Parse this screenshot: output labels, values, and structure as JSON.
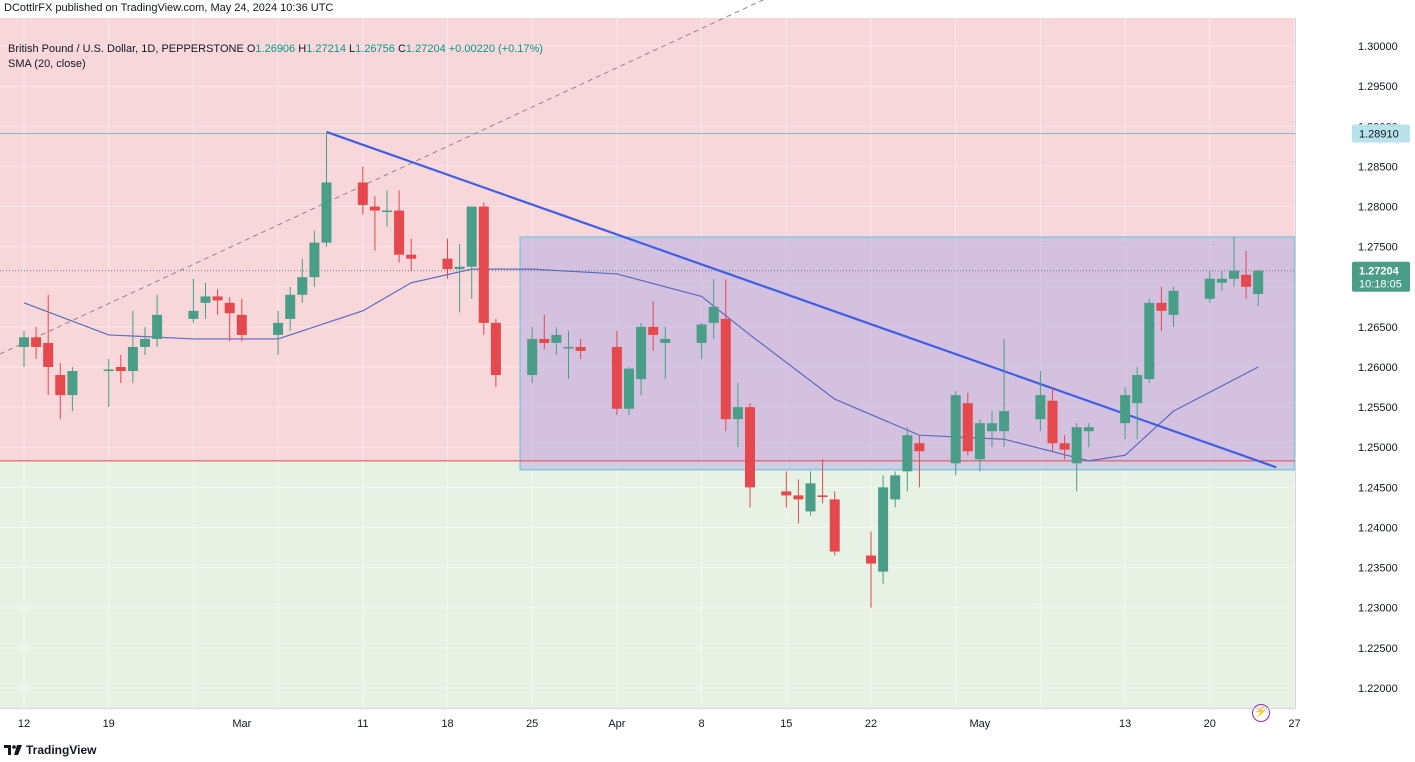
{
  "header": {
    "published": "DCottlrFX published on TradingView.com, May 24, 2024 10:36 UTC"
  },
  "legend": {
    "symbol": "British Pound / U.S. Dollar, 1D, PEPPERSTONE",
    "open_label": "O",
    "open": "1.26906",
    "high_label": "H",
    "high": "1.27214",
    "low_label": "L",
    "low": "1.26756",
    "close_label": "C",
    "close": "1.27204",
    "change": "+0.00220 (+0.17%)",
    "indicator": "SMA (20, close)"
  },
  "price_badges": {
    "resistance": "1.28910",
    "last": "1.27204",
    "countdown": "10:18:05"
  },
  "footer": {
    "brand": "TradingView"
  },
  "colors": {
    "up": "#4a9e88",
    "down": "#e5484d",
    "upper_zone": "#f7d7d9",
    "lower_zone": "#e8f2e4",
    "box": "#b6aee3",
    "trendline": "#3f5fe6",
    "sma": "#5c6bc0",
    "diagonal": "#a07f8a"
  },
  "chart_data": {
    "type": "candlestick",
    "title": "British Pound / U.S. Dollar, 1D, PEPPERSTONE",
    "y_ticks": [
      "1.30000",
      "1.29500",
      "1.29000",
      "1.28500",
      "1.28000",
      "1.27500",
      "1.27000",
      "1.26500",
      "1.26000",
      "1.25500",
      "1.25000",
      "1.24500",
      "1.24000",
      "1.23500",
      "1.23000",
      "1.22500",
      "1.22000"
    ],
    "ylim": [
      1.2175,
      1.3035
    ],
    "x_ticks": [
      "12",
      "19",
      "Mar",
      "11",
      "18",
      "25",
      "Apr",
      "8",
      "15",
      "22",
      "May",
      "13",
      "20",
      "27"
    ],
    "horizontal_levels": [
      1.2891,
      1.2483
    ],
    "zone": {
      "top": 1.2762,
      "bottom": 1.2472,
      "start": "Mar 25",
      "end": "May 27"
    },
    "trendline": {
      "from": [
        "Mar 8",
        1.2893
      ],
      "to": [
        "May 24",
        1.2475
      ]
    },
    "candles": [
      {
        "d": "Feb 12",
        "o": 1.2625,
        "h": 1.2645,
        "l": 1.26,
        "c": 1.2637
      },
      {
        "d": "Feb 13",
        "o": 1.2637,
        "h": 1.265,
        "l": 1.261,
        "c": 1.2625
      },
      {
        "d": "Feb 14",
        "o": 1.263,
        "h": 1.269,
        "l": 1.2565,
        "c": 1.26
      },
      {
        "d": "Feb 15",
        "o": 1.259,
        "h": 1.2605,
        "l": 1.2535,
        "c": 1.2565
      },
      {
        "d": "Feb 16",
        "o": 1.2565,
        "h": 1.26,
        "l": 1.2545,
        "c": 1.2595
      },
      {
        "d": "Feb 19",
        "o": 1.2595,
        "h": 1.261,
        "l": 1.255,
        "c": 1.2597
      },
      {
        "d": "Feb 20",
        "o": 1.26,
        "h": 1.2615,
        "l": 1.258,
        "c": 1.2595
      },
      {
        "d": "Feb 21",
        "o": 1.2595,
        "h": 1.267,
        "l": 1.258,
        "c": 1.2625
      },
      {
        "d": "Feb 22",
        "o": 1.2625,
        "h": 1.265,
        "l": 1.2615,
        "c": 1.2635
      },
      {
        "d": "Feb 23",
        "o": 1.2635,
        "h": 1.269,
        "l": 1.2625,
        "c": 1.2665
      },
      {
        "d": "Feb 26",
        "o": 1.266,
        "h": 1.271,
        "l": 1.2655,
        "c": 1.267
      },
      {
        "d": "Feb 27",
        "o": 1.268,
        "h": 1.2705,
        "l": 1.266,
        "c": 1.2688
      },
      {
        "d": "Feb 28",
        "o": 1.2688,
        "h": 1.2697,
        "l": 1.2665,
        "c": 1.2683
      },
      {
        "d": "Feb 29",
        "o": 1.268,
        "h": 1.2687,
        "l": 1.2632,
        "c": 1.2667
      },
      {
        "d": "Mar 1",
        "o": 1.2665,
        "h": 1.2685,
        "l": 1.2632,
        "c": 1.264
      },
      {
        "d": "Mar 4",
        "o": 1.264,
        "h": 1.267,
        "l": 1.2615,
        "c": 1.2655
      },
      {
        "d": "Mar 5",
        "o": 1.266,
        "h": 1.27,
        "l": 1.2645,
        "c": 1.269
      },
      {
        "d": "Mar 6",
        "o": 1.269,
        "h": 1.2735,
        "l": 1.268,
        "c": 1.2712
      },
      {
        "d": "Mar 7",
        "o": 1.2712,
        "h": 1.277,
        "l": 1.27,
        "c": 1.2755
      },
      {
        "d": "Mar 8",
        "o": 1.2755,
        "h": 1.2893,
        "l": 1.275,
        "c": 1.283
      },
      {
        "d": "Mar 11",
        "o": 1.283,
        "h": 1.285,
        "l": 1.279,
        "c": 1.2802
      },
      {
        "d": "Mar 12",
        "o": 1.28,
        "h": 1.2813,
        "l": 1.2745,
        "c": 1.2795
      },
      {
        "d": "Mar 13",
        "o": 1.2795,
        "h": 1.282,
        "l": 1.2775,
        "c": 1.2795
      },
      {
        "d": "Mar 14",
        "o": 1.2795,
        "h": 1.282,
        "l": 1.273,
        "c": 1.274
      },
      {
        "d": "Mar 15",
        "o": 1.274,
        "h": 1.276,
        "l": 1.272,
        "c": 1.2735
      },
      {
        "d": "Mar 18",
        "o": 1.2735,
        "h": 1.276,
        "l": 1.271,
        "c": 1.2722
      },
      {
        "d": "Mar 19",
        "o": 1.2722,
        "h": 1.2753,
        "l": 1.2668,
        "c": 1.2725
      },
      {
        "d": "Mar 20",
        "o": 1.2725,
        "h": 1.28,
        "l": 1.2685,
        "c": 1.28
      },
      {
        "d": "Mar 21",
        "o": 1.28,
        "h": 1.2805,
        "l": 1.264,
        "c": 1.2655
      },
      {
        "d": "Mar 22",
        "o": 1.2655,
        "h": 1.266,
        "l": 1.2575,
        "c": 1.259
      },
      {
        "d": "Mar 25",
        "o": 1.259,
        "h": 1.265,
        "l": 1.258,
        "c": 1.2635
      },
      {
        "d": "Mar 26",
        "o": 1.2635,
        "h": 1.2665,
        "l": 1.2622,
        "c": 1.263
      },
      {
        "d": "Mar 27",
        "o": 1.263,
        "h": 1.265,
        "l": 1.2615,
        "c": 1.264
      },
      {
        "d": "Mar 28",
        "o": 1.2625,
        "h": 1.2645,
        "l": 1.2585,
        "c": 1.2625
      },
      {
        "d": "Mar 29",
        "o": 1.2625,
        "h": 1.2635,
        "l": 1.261,
        "c": 1.262
      },
      {
        "d": "Apr 1",
        "o": 1.2625,
        "h": 1.2645,
        "l": 1.254,
        "c": 1.2548
      },
      {
        "d": "Apr 2",
        "o": 1.2548,
        "h": 1.26,
        "l": 1.254,
        "c": 1.2598
      },
      {
        "d": "Apr 3",
        "o": 1.2585,
        "h": 1.2655,
        "l": 1.2565,
        "c": 1.265
      },
      {
        "d": "Apr 4",
        "o": 1.265,
        "h": 1.2682,
        "l": 1.262,
        "c": 1.264
      },
      {
        "d": "Apr 5",
        "o": 1.263,
        "h": 1.265,
        "l": 1.2585,
        "c": 1.2635
      },
      {
        "d": "Apr 8",
        "o": 1.263,
        "h": 1.2655,
        "l": 1.261,
        "c": 1.2653
      },
      {
        "d": "Apr 9",
        "o": 1.2655,
        "h": 1.271,
        "l": 1.2635,
        "c": 1.2675
      },
      {
        "d": "Apr 10",
        "o": 1.266,
        "h": 1.2709,
        "l": 1.252,
        "c": 1.2535
      },
      {
        "d": "Apr 11",
        "o": 1.2535,
        "h": 1.258,
        "l": 1.25,
        "c": 1.255
      },
      {
        "d": "Apr 12",
        "o": 1.255,
        "h": 1.2555,
        "l": 1.2425,
        "c": 1.245
      },
      {
        "d": "Apr 15",
        "o": 1.2445,
        "h": 1.247,
        "l": 1.2425,
        "c": 1.244
      },
      {
        "d": "Apr 16",
        "o": 1.244,
        "h": 1.246,
        "l": 1.2405,
        "c": 1.2435
      },
      {
        "d": "Apr 17",
        "o": 1.242,
        "h": 1.247,
        "l": 1.2415,
        "c": 1.2455
      },
      {
        "d": "Apr 18",
        "o": 1.244,
        "h": 1.2485,
        "l": 1.243,
        "c": 1.2438
      },
      {
        "d": "Apr 19",
        "o": 1.2435,
        "h": 1.2445,
        "l": 1.2365,
        "c": 1.237
      },
      {
        "d": "Apr 22",
        "o": 1.2365,
        "h": 1.2395,
        "l": 1.23,
        "c": 1.2355
      },
      {
        "d": "Apr 23",
        "o": 1.2345,
        "h": 1.2465,
        "l": 1.233,
        "c": 1.245
      },
      {
        "d": "Apr 24",
        "o": 1.2435,
        "h": 1.247,
        "l": 1.2425,
        "c": 1.2465
      },
      {
        "d": "Apr 25",
        "o": 1.247,
        "h": 1.2525,
        "l": 1.2445,
        "c": 1.2515
      },
      {
        "d": "Apr 26",
        "o": 1.2505,
        "h": 1.2515,
        "l": 1.245,
        "c": 1.2495
      },
      {
        "d": "Apr 29",
        "o": 1.248,
        "h": 1.257,
        "l": 1.2465,
        "c": 1.2565
      },
      {
        "d": "Apr 30",
        "o": 1.2555,
        "h": 1.2568,
        "l": 1.249,
        "c": 1.2495
      },
      {
        "d": "May 1",
        "o": 1.2485,
        "h": 1.2535,
        "l": 1.247,
        "c": 1.253
      },
      {
        "d": "May 2",
        "o": 1.252,
        "h": 1.2545,
        "l": 1.25,
        "c": 1.253
      },
      {
        "d": "May 3",
        "o": 1.252,
        "h": 1.2635,
        "l": 1.25,
        "c": 1.2545
      },
      {
        "d": "May 6",
        "o": 1.2535,
        "h": 1.2595,
        "l": 1.252,
        "c": 1.2565
      },
      {
        "d": "May 7",
        "o": 1.2558,
        "h": 1.2575,
        "l": 1.2495,
        "c": 1.2505
      },
      {
        "d": "May 8",
        "o": 1.2505,
        "h": 1.2515,
        "l": 1.2485,
        "c": 1.2497
      },
      {
        "d": "May 9",
        "o": 1.248,
        "h": 1.253,
        "l": 1.2445,
        "c": 1.2525
      },
      {
        "d": "May 10",
        "o": 1.252,
        "h": 1.253,
        "l": 1.25,
        "c": 1.2525
      },
      {
        "d": "May 13",
        "o": 1.253,
        "h": 1.2575,
        "l": 1.251,
        "c": 1.2565
      },
      {
        "d": "May 14",
        "o": 1.2555,
        "h": 1.26,
        "l": 1.251,
        "c": 1.259
      },
      {
        "d": "May 15",
        "o": 1.2585,
        "h": 1.2685,
        "l": 1.258,
        "c": 1.268
      },
      {
        "d": "May 16",
        "o": 1.268,
        "h": 1.27,
        "l": 1.2645,
        "c": 1.267
      },
      {
        "d": "May 17",
        "o": 1.2665,
        "h": 1.27,
        "l": 1.265,
        "c": 1.2695
      },
      {
        "d": "May 20",
        "o": 1.2685,
        "h": 1.272,
        "l": 1.268,
        "c": 1.271
      },
      {
        "d": "May 21",
        "o": 1.2705,
        "h": 1.272,
        "l": 1.2695,
        "c": 1.271
      },
      {
        "d": "May 22",
        "o": 1.271,
        "h": 1.2762,
        "l": 1.27,
        "c": 1.272
      },
      {
        "d": "May 23",
        "o": 1.2715,
        "h": 1.2745,
        "l": 1.2685,
        "c": 1.27
      },
      {
        "d": "May 24",
        "o": 1.2691,
        "h": 1.2721,
        "l": 1.2676,
        "c": 1.272
      }
    ],
    "sma20": [
      [
        "Feb 12",
        1.268
      ],
      [
        "Feb 19",
        1.264
      ],
      [
        "Feb 26",
        1.2635
      ],
      [
        "Mar 4",
        1.2635
      ],
      [
        "Mar 11",
        1.267
      ],
      [
        "Mar 15",
        1.2705
      ],
      [
        "Mar 20",
        1.2722
      ],
      [
        "Mar 25",
        1.2722
      ],
      [
        "Apr 1",
        1.2716
      ],
      [
        "Apr 8",
        1.2688
      ],
      [
        "Apr 12",
        1.264
      ],
      [
        "Apr 19",
        1.256
      ],
      [
        "Apr 26",
        1.2515
      ],
      [
        "May 3",
        1.251
      ],
      [
        "May 10",
        1.2483
      ],
      [
        "May 13",
        1.249
      ],
      [
        "May 17",
        1.2545
      ],
      [
        "May 24",
        1.26
      ]
    ]
  }
}
